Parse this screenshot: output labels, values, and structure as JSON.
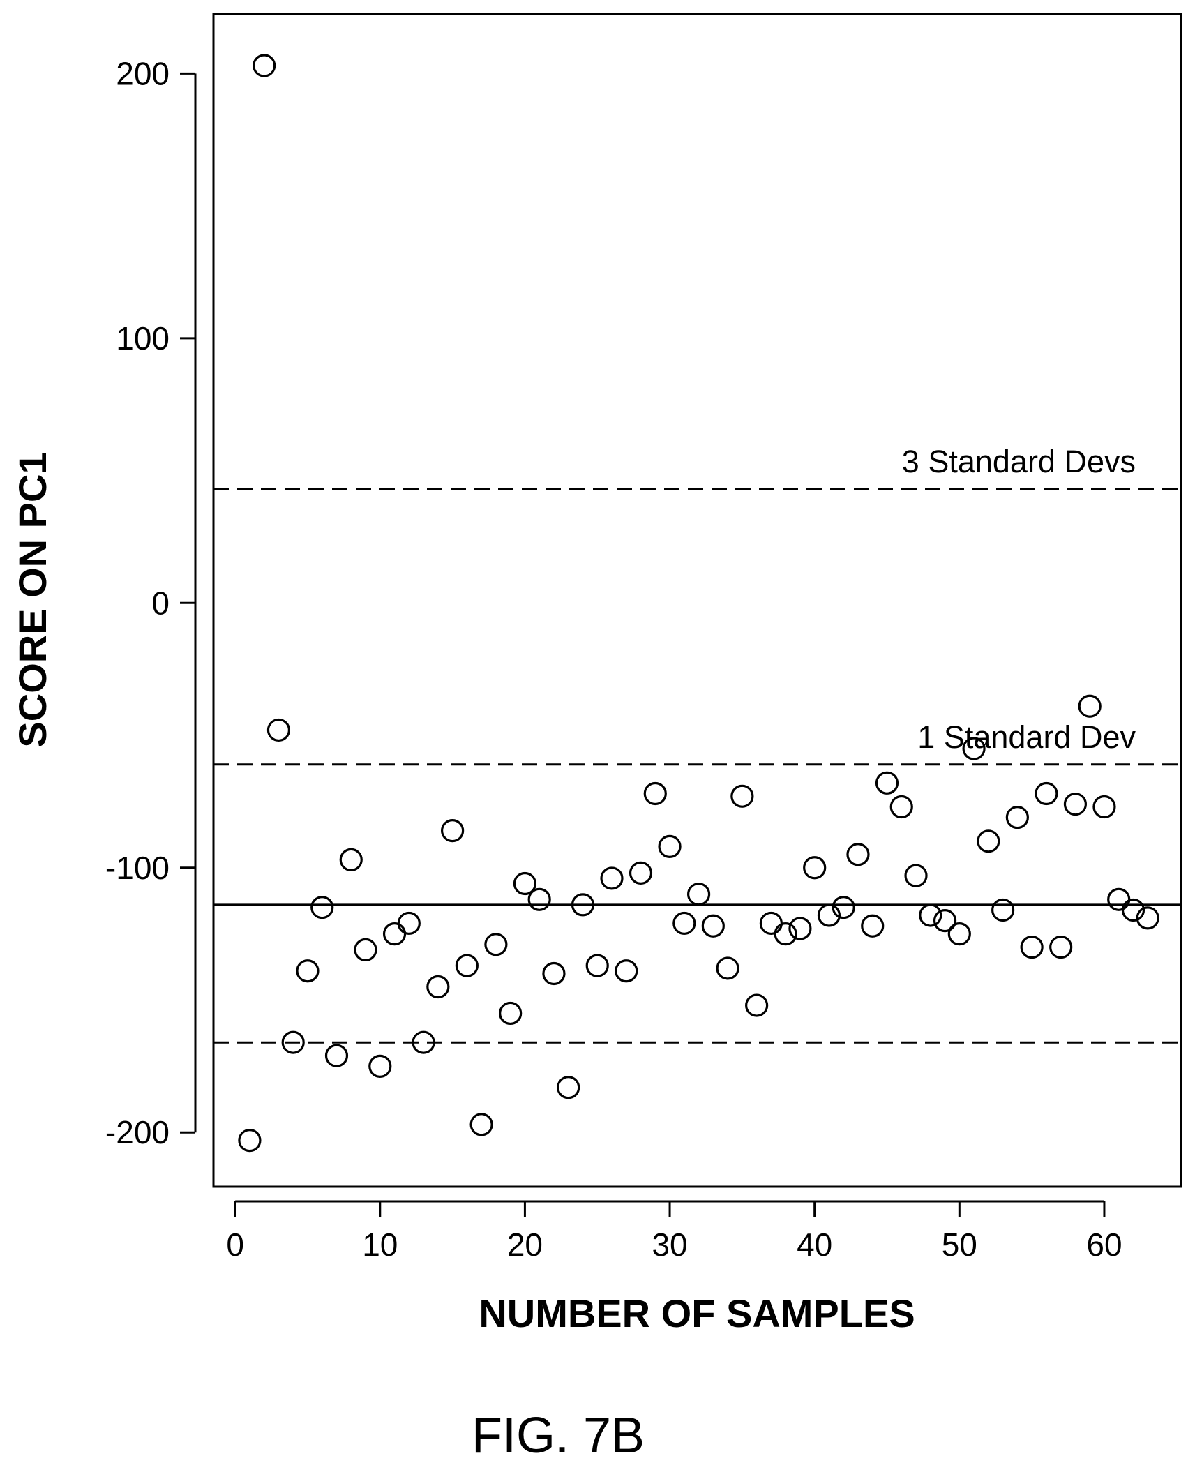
{
  "chart_data": {
    "type": "scatter",
    "title": "",
    "xlabel": "NUMBER OF SAMPLES",
    "ylabel": "SCORE ON PC1",
    "xlim": [
      -1.5,
      65.3
    ],
    "ylim": [
      -220.5,
      222.5
    ],
    "x_ticks": [
      0,
      10,
      20,
      30,
      40,
      50,
      60
    ],
    "y_ticks": [
      200,
      100,
      0,
      -100,
      -200
    ],
    "x_tick_labels": [
      "0",
      "10",
      "20",
      "30",
      "40",
      "50",
      "60"
    ],
    "y_tick_labels": [
      "200",
      "100",
      "0",
      "-100",
      "-200"
    ],
    "grid": false,
    "marker": "open-circle",
    "series": [
      {
        "x": [
          1,
          2,
          3,
          4,
          5,
          6,
          7,
          8,
          9,
          10,
          11,
          12,
          13,
          14,
          15,
          16,
          17,
          18,
          19,
          20,
          21,
          22,
          23,
          24,
          25,
          26,
          27,
          28,
          29,
          30,
          31,
          32,
          33,
          34,
          35,
          36,
          37,
          38,
          39,
          40,
          41,
          42,
          43,
          44,
          45,
          46,
          47,
          48,
          49,
          50,
          51,
          52,
          53,
          54,
          55,
          56,
          57,
          58,
          59,
          60,
          61,
          62,
          63
        ],
        "y": [
          -203,
          203,
          -48,
          -166,
          -139,
          -115,
          -171,
          -97,
          -131,
          -175,
          -125,
          -121,
          -166,
          -145,
          -86,
          -137,
          -197,
          -129,
          -155,
          -106,
          -112,
          -140,
          -183,
          -114,
          -137,
          -104,
          -139,
          -102,
          -72,
          -92,
          -121,
          -110,
          -122,
          -138,
          -73,
          -152,
          -121,
          -125,
          -123,
          -100,
          -118,
          -115,
          -95,
          -122,
          -68,
          -77,
          -103,
          -118,
          -120,
          -125,
          -55,
          -90,
          -116,
          -81,
          -130,
          -72,
          -130,
          -76,
          -39,
          -77,
          -112,
          -116,
          -119
        ]
      }
    ],
    "reference_lines": [
      {
        "y": 43,
        "style": "dashed",
        "label": "3 Standard Devs"
      },
      {
        "y": -61,
        "style": "dashed",
        "label": "1 Standard Dev"
      },
      {
        "y": -114,
        "style": "solid",
        "label": ""
      },
      {
        "y": -166,
        "style": "dashed",
        "label": ""
      }
    ]
  },
  "figure_caption": "FIG. 7B"
}
